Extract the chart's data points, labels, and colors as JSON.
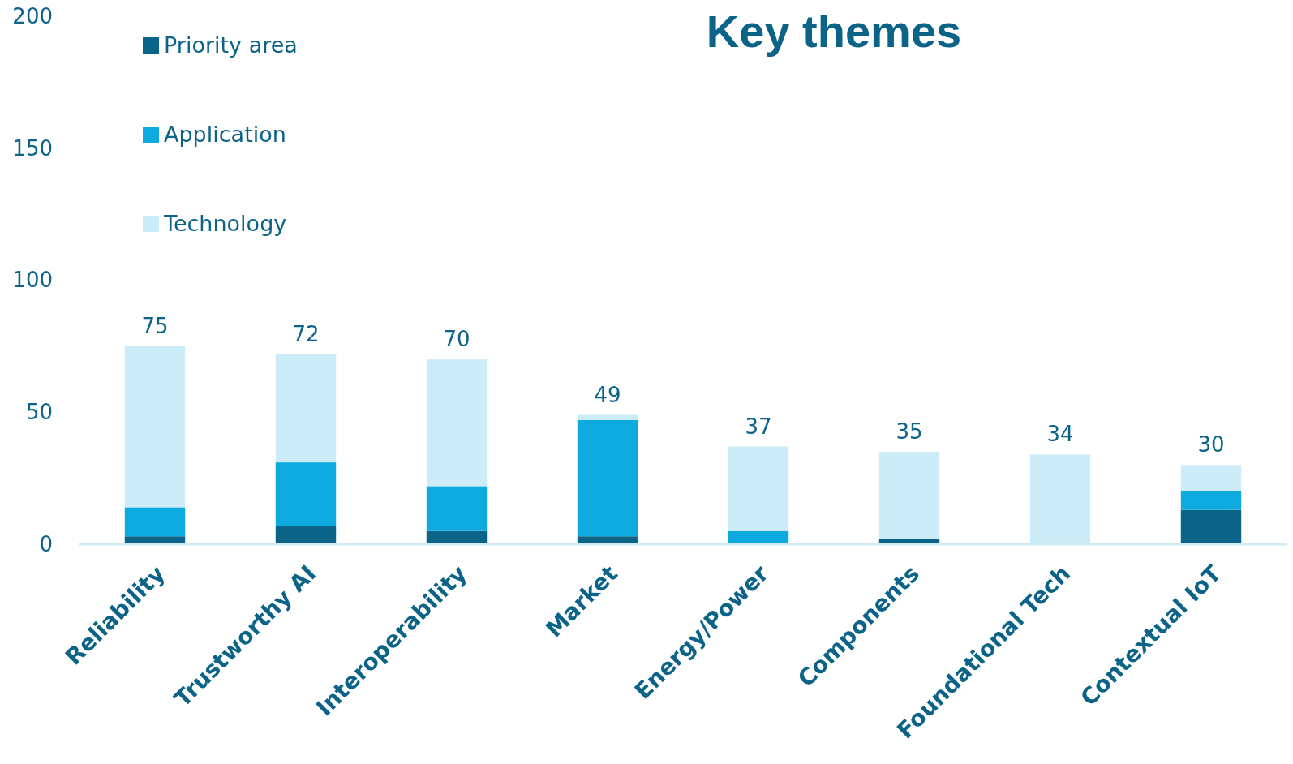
{
  "chart_data": {
    "type": "bar",
    "title": "Key themes",
    "stacked": true,
    "categories": [
      "Reliability",
      "Trustworthy AI",
      "Interoperability",
      "Market",
      "Energy/Power",
      "Components",
      "Foundational Tech",
      "Contextual IoT"
    ],
    "series": [
      {
        "name": "Priority area",
        "color": "#0b6388",
        "values": [
          3,
          7,
          5,
          3,
          0,
          2,
          0,
          13
        ]
      },
      {
        "name": "Application",
        "color": "#0daadf",
        "values": [
          11,
          24,
          17,
          44,
          5,
          0,
          0,
          7
        ]
      },
      {
        "name": "Technology",
        "color": "#ccecf8",
        "values": [
          61,
          41,
          48,
          2,
          32,
          33,
          34,
          10
        ]
      }
    ],
    "totals": [
      "75",
      "72",
      "70",
      "49",
      "37",
      "35",
      "34",
      "30"
    ],
    "ylim": [
      0,
      200
    ],
    "yticks": [
      0,
      50,
      100,
      150,
      200
    ],
    "legend": "top left"
  }
}
